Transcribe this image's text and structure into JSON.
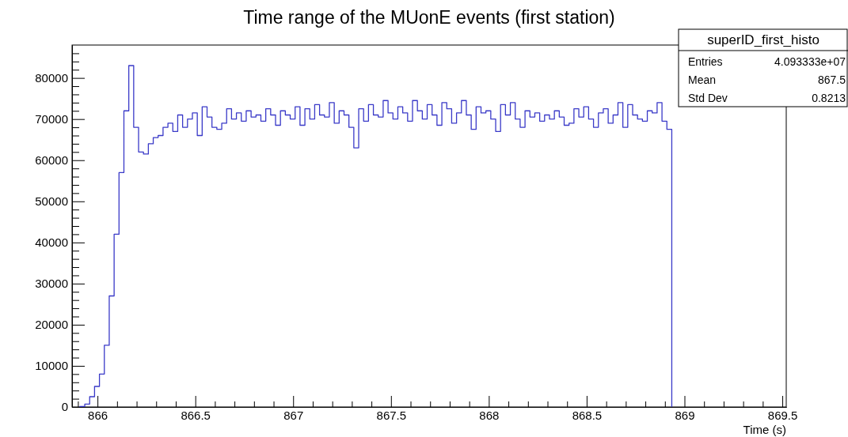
{
  "chart_data": {
    "type": "histogram",
    "title": "Time range of the MUonE events (first station)",
    "xlabel": "Time (s)",
    "bins": [
      865.91,
      865.935,
      865.96,
      865.985,
      866.01,
      866.035,
      866.06,
      866.085,
      866.11,
      866.135,
      866.16,
      866.185,
      866.21,
      866.235,
      866.26,
      866.285,
      866.31,
      866.335,
      866.36,
      866.385,
      866.41,
      866.435,
      866.46,
      866.485,
      866.51,
      866.535,
      866.56,
      866.585,
      866.61,
      866.635,
      866.66,
      866.685,
      866.71,
      866.735,
      866.76,
      866.785,
      866.81,
      866.835,
      866.86,
      866.885,
      866.91,
      866.935,
      866.96,
      866.985,
      867.01,
      867.035,
      867.06,
      867.085,
      867.11,
      867.135,
      867.16,
      867.185,
      867.21,
      867.235,
      867.26,
      867.285,
      867.31,
      867.335,
      867.36,
      867.385,
      867.41,
      867.435,
      867.46,
      867.485,
      867.51,
      867.535,
      867.56,
      867.585,
      867.61,
      867.635,
      867.66,
      867.685,
      867.71,
      867.735,
      867.76,
      867.785,
      867.81,
      867.835,
      867.86,
      867.885,
      867.91,
      867.935,
      867.96,
      867.985,
      868.01,
      868.035,
      868.06,
      868.085,
      868.11,
      868.135,
      868.16,
      868.185,
      868.21,
      868.235,
      868.26,
      868.285,
      868.31,
      868.335,
      868.36,
      868.385,
      868.41,
      868.435,
      868.46,
      868.485,
      868.51,
      868.535,
      868.56,
      868.585,
      868.61,
      868.635,
      868.66,
      868.685,
      868.71,
      868.735,
      868.76,
      868.785,
      868.81,
      868.835,
      868.86,
      868.885,
      868.91,
      868.935
    ],
    "values": [
      100,
      700,
      2500,
      5000,
      8000,
      15000,
      27000,
      42000,
      57000,
      72000,
      83000,
      68000,
      62000,
      61500,
      64000,
      65500,
      66000,
      68000,
      69000,
      67000,
      71000,
      68000,
      70000,
      71500,
      66000,
      73000,
      70500,
      68000,
      67500,
      69000,
      72500,
      70000,
      71500,
      69500,
      72000,
      70500,
      71000,
      69500,
      72500,
      71000,
      68500,
      72000,
      71000,
      70000,
      73000,
      68500,
      72500,
      70000,
      73500,
      71000,
      70500,
      74000,
      69000,
      72000,
      71000,
      68000,
      63000,
      72500,
      69500,
      73500,
      71000,
      70500,
      74500,
      71500,
      70000,
      73000,
      71500,
      69500,
      74500,
      72000,
      70000,
      73500,
      71000,
      68500,
      74000,
      72500,
      69000,
      71500,
      74500,
      71000,
      67500,
      73000,
      71500,
      72000,
      70000,
      67000,
      73500,
      71000,
      74000,
      70000,
      68000,
      72000,
      70500,
      71500,
      69500,
      71000,
      70000,
      72000,
      70500,
      68500,
      69000,
      72500,
      70500,
      73000,
      70000,
      68000,
      71500,
      72500,
      69000,
      71000,
      74000,
      68000,
      73500,
      71000,
      70000,
      69500,
      72000,
      71500,
      74000,
      69500,
      67500
    ],
    "color": "#3a3ac8",
    "xlim": [
      865.87,
      869.52
    ],
    "xticks": [
      {
        "value": 865.9,
        "label": null
      },
      866,
      {
        "value": 866.1,
        "label": null
      },
      {
        "value": 866.2,
        "label": null
      },
      {
        "value": 866.3,
        "label": null
      },
      {
        "value": 866.4,
        "label": null
      },
      866.5,
      {
        "value": 866.6,
        "label": null
      },
      {
        "value": 866.7,
        "label": null
      },
      {
        "value": 866.8,
        "label": null
      },
      {
        "value": 866.9,
        "label": null
      },
      867,
      {
        "value": 867.1,
        "label": null
      },
      {
        "value": 867.2,
        "label": null
      },
      {
        "value": 867.3,
        "label": null
      },
      {
        "value": 867.4,
        "label": null
      },
      867.5,
      {
        "value": 867.6,
        "label": null
      },
      {
        "value": 867.7,
        "label": null
      },
      {
        "value": 867.8,
        "label": null
      },
      {
        "value": 867.9,
        "label": null
      },
      868,
      {
        "value": 868.1,
        "label": null
      },
      {
        "value": 868.2,
        "label": null
      },
      {
        "value": 868.3,
        "label": null
      },
      {
        "value": 868.4,
        "label": null
      },
      868.5,
      {
        "value": 868.6,
        "label": null
      },
      {
        "value": 868.7,
        "label": null
      },
      {
        "value": 868.8,
        "label": null
      },
      {
        "value": 868.9,
        "label": null
      },
      869,
      {
        "value": 869.1,
        "label": null
      },
      {
        "value": 869.2,
        "label": null
      },
      {
        "value": 869.3,
        "label": null
      },
      {
        "value": 869.4,
        "label": null
      },
      869.5
    ],
    "ylim": [
      0,
      88000
    ],
    "yticks": [
      0,
      {
        "value": 2000,
        "label": null
      },
      {
        "value": 4000,
        "label": null
      },
      {
        "value": 6000,
        "label": null
      },
      {
        "value": 8000,
        "label": null
      },
      10000,
      {
        "value": 12000,
        "label": null
      },
      {
        "value": 14000,
        "label": null
      },
      {
        "value": 16000,
        "label": null
      },
      {
        "value": 18000,
        "label": null
      },
      20000,
      {
        "value": 22000,
        "label": null
      },
      {
        "value": 24000,
        "label": null
      },
      {
        "value": 26000,
        "label": null
      },
      {
        "value": 28000,
        "label": null
      },
      30000,
      {
        "value": 32000,
        "label": null
      },
      {
        "value": 34000,
        "label": null
      },
      {
        "value": 36000,
        "label": null
      },
      {
        "value": 38000,
        "label": null
      },
      40000,
      {
        "value": 42000,
        "label": null
      },
      {
        "value": 44000,
        "label": null
      },
      {
        "value": 46000,
        "label": null
      },
      {
        "value": 48000,
        "label": null
      },
      50000,
      {
        "value": 52000,
        "label": null
      },
      {
        "value": 54000,
        "label": null
      },
      {
        "value": 56000,
        "label": null
      },
      {
        "value": 58000,
        "label": null
      },
      60000,
      {
        "value": 62000,
        "label": null
      },
      {
        "value": 64000,
        "label": null
      },
      {
        "value": 66000,
        "label": null
      },
      {
        "value": 68000,
        "label": null
      },
      70000,
      {
        "value": 72000,
        "label": null
      },
      {
        "value": 74000,
        "label": null
      },
      {
        "value": 76000,
        "label": null
      },
      {
        "value": 78000,
        "label": null
      },
      80000,
      {
        "value": 82000,
        "label": null
      },
      {
        "value": 84000,
        "label": null
      },
      {
        "value": 86000,
        "label": null
      }
    ],
    "annotations": [
      "superID_first_histo",
      "Entries",
      "4.093333e+07",
      "Mean",
      "867.5",
      "Std Dev",
      "0.8213"
    ]
  }
}
